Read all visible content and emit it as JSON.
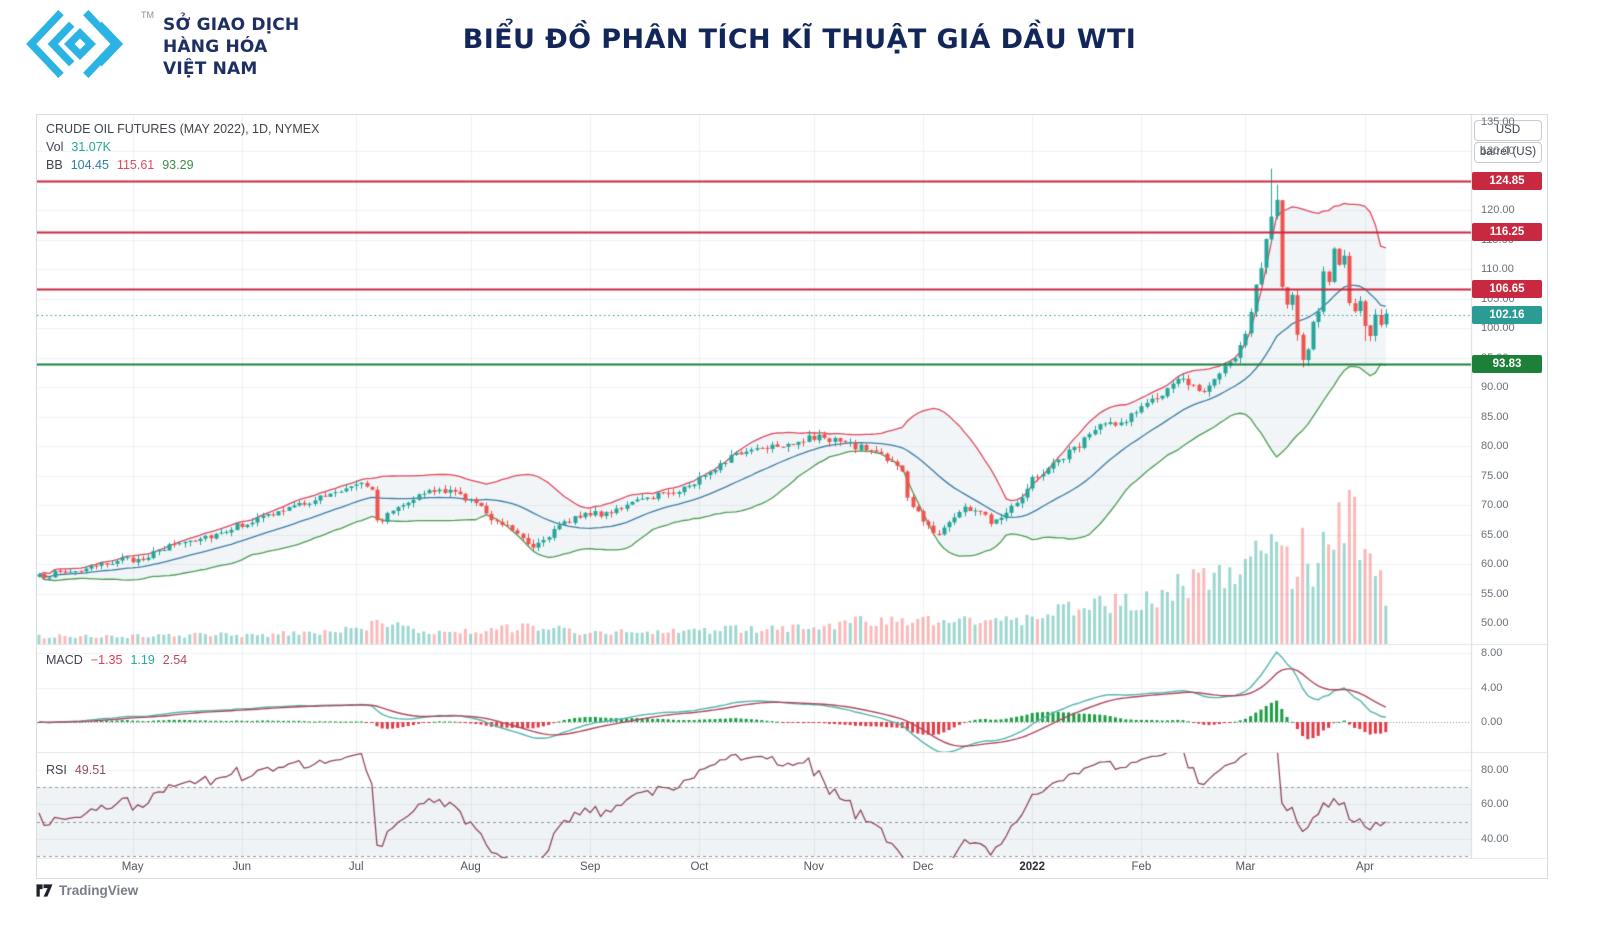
{
  "header": {
    "title": "BIỂU ĐỒ PHÂN TÍCH KĨ THUẬT GIÁ DẦU WTI",
    "logo_tm": "TM",
    "logo_lines": [
      "SỞ GIAO DỊCH",
      "HÀNG HÓA",
      "VIỆT NAM"
    ]
  },
  "chart": {
    "symbol_title": "CRUDE OIL FUTURES (MAY 2022), 1D, NYMEX",
    "vol_label": "Vol",
    "vol_value": "31.07K",
    "bb_label": "BB",
    "bb_basis": "104.45",
    "bb_upper": "115.61",
    "bb_lower": "93.29",
    "macd_label": "MACD",
    "macd_hist": "−1.35",
    "macd_line": "1.19",
    "macd_signal": "2.54",
    "rsi_label": "RSI",
    "rsi_value": "49.51",
    "unit_badges": [
      "USD",
      "barrel (US)"
    ]
  },
  "footer": {
    "attribution": "TradingView"
  },
  "colors": {
    "grid": "#eef1f4",
    "divider": "#e1e4e9",
    "candle_up": "#26a69a",
    "candle_down": "#ef5350",
    "vol_up": "rgba(42,166,154,0.45)",
    "vol_down": "rgba(239,83,80,0.40)",
    "bb_upper": "#df4a5e",
    "bb_lower": "#4d9e52",
    "bb_basis": "#3f7ea6",
    "bb_fill": "rgba(120,160,180,0.10)",
    "macd_line": "#56b6ae",
    "macd_signal": "#b04b5f",
    "hist_up": "#1d9d43",
    "hist_down": "#e13b47",
    "rsi_line": "#90495c",
    "rsi_fill": "rgba(120,160,180,0.12)",
    "rsi_dash": "#9298a0",
    "axis_line": "#d8dbe0"
  },
  "chart_data": {
    "type": "candlestick",
    "title": "CRUDE OIL FUTURES (MAY 2022), 1D, NYMEX",
    "unit": "USD / barrel (US)",
    "indicators": [
      "Volume",
      "BB(20,2)",
      "MACD(12,26,9)",
      "RSI(14)"
    ],
    "legend_values": {
      "vol": "31.07K",
      "bb": [
        104.45,
        115.61,
        93.29
      ],
      "macd": [
        -1.35,
        1.19,
        2.54
      ],
      "rsi": 49.51
    },
    "x_axis": {
      "labels": [
        "May",
        "Jun",
        "Jul",
        "Aug",
        "Sep",
        "Oct",
        "Nov",
        "Dec",
        "2022",
        "Feb",
        "Mar",
        "Apr"
      ]
    },
    "month_start_days": [
      18,
      39,
      61,
      83,
      106,
      127,
      149,
      170,
      191,
      212,
      232,
      255
    ],
    "days_total": 260,
    "price_axis": {
      "min": 50,
      "max": 135,
      "step": 5
    },
    "macd_axis": [
      0,
      4,
      8
    ],
    "rsi_axis": [
      40,
      60,
      80
    ],
    "rsi_bands": [
      70,
      50,
      30
    ],
    "levels": [
      {
        "value": 124.85,
        "label": "124.85",
        "color": "#c82940",
        "style": "solid",
        "role": "resistance-1"
      },
      {
        "value": 116.25,
        "label": "116.25",
        "color": "#c82940",
        "style": "solid",
        "role": "resistance-2"
      },
      {
        "value": 106.65,
        "label": "106.65",
        "color": "#c82940",
        "style": "solid",
        "role": "resistance-3"
      },
      {
        "value": 102.16,
        "label": "102.16",
        "color": "#2a9c94",
        "style": "dotted",
        "role": "last-price"
      },
      {
        "value": 93.83,
        "label": "93.83",
        "color": "#1c8038",
        "style": "solid",
        "role": "support-1"
      }
    ],
    "close_keyframes": [
      [
        0,
        57.8
      ],
      [
        3,
        58.4
      ],
      [
        7,
        58.9
      ],
      [
        11,
        59.4
      ],
      [
        15,
        60.8
      ],
      [
        18,
        60.6
      ],
      [
        22,
        61.7
      ],
      [
        26,
        63.4
      ],
      [
        30,
        64.3
      ],
      [
        34,
        65.1
      ],
      [
        38,
        66.5
      ],
      [
        41,
        67.3
      ],
      [
        45,
        68.5
      ],
      [
        49,
        69.7
      ],
      [
        53,
        71.0
      ],
      [
        57,
        72.0
      ],
      [
        60,
        73.4
      ],
      [
        62,
        74.2
      ],
      [
        64,
        72.9
      ],
      [
        65,
        67.1
      ],
      [
        67,
        68.3
      ],
      [
        70,
        70.5
      ],
      [
        74,
        71.9
      ],
      [
        77,
        72.5
      ],
      [
        80,
        72.0
      ],
      [
        82,
        71.3
      ],
      [
        84,
        70.2
      ],
      [
        87,
        67.9
      ],
      [
        90,
        66.5
      ],
      [
        93,
        64.7
      ],
      [
        95,
        63.0
      ],
      [
        97,
        64.4
      ],
      [
        100,
        66.2
      ],
      [
        103,
        68.0
      ],
      [
        105,
        68.7
      ],
      [
        108,
        68.3
      ],
      [
        111,
        69.5
      ],
      [
        115,
        70.4
      ],
      [
        119,
        71.9
      ],
      [
        123,
        72.5
      ],
      [
        126,
        73.7
      ],
      [
        128,
        75.3
      ],
      [
        132,
        77.7
      ],
      [
        136,
        79.2
      ],
      [
        140,
        80.1
      ],
      [
        144,
        80.5
      ],
      [
        148,
        81.2
      ],
      [
        151,
        81.5
      ],
      [
        155,
        80.4
      ],
      [
        159,
        79.5
      ],
      [
        162,
        78.7
      ],
      [
        164,
        77.1
      ],
      [
        166,
        75.7
      ],
      [
        167,
        71.1
      ],
      [
        169,
        68.5
      ],
      [
        171,
        66.3
      ],
      [
        173,
        64.9
      ],
      [
        175,
        67.4
      ],
      [
        178,
        69.5
      ],
      [
        181,
        68.9
      ],
      [
        183,
        67.1
      ],
      [
        186,
        69.0
      ],
      [
        189,
        71.7
      ],
      [
        191,
        74.4
      ],
      [
        194,
        76.3
      ],
      [
        198,
        78.9
      ],
      [
        202,
        81.8
      ],
      [
        205,
        84.0
      ],
      [
        207,
        83.2
      ],
      [
        210,
        85.3
      ],
      [
        213,
        87.2
      ],
      [
        216,
        88.7
      ],
      [
        218,
        90.0
      ],
      [
        220,
        91.5
      ],
      [
        222,
        90.3
      ],
      [
        224,
        89.7
      ],
      [
        226,
        90.9
      ],
      [
        228,
        93.0
      ],
      [
        230,
        95.2
      ],
      [
        231,
        96.5
      ],
      [
        232,
        99.4
      ],
      [
        233,
        102.5
      ],
      [
        234,
        107.0
      ],
      [
        235,
        110.4
      ],
      [
        236,
        114.9
      ],
      [
        237,
        118.7
      ],
      [
        238,
        121.4
      ],
      [
        239,
        106.9
      ],
      [
        240,
        103.7
      ],
      [
        241,
        105.0
      ],
      [
        242,
        99.3
      ],
      [
        243,
        94.9
      ],
      [
        244,
        96.8
      ],
      [
        245,
        100.7
      ],
      [
        246,
        103.3
      ],
      [
        247,
        109.5
      ],
      [
        248,
        108.4
      ],
      [
        249,
        112.7
      ],
      [
        250,
        110.3
      ],
      [
        251,
        111.5
      ],
      [
        252,
        104.7
      ],
      [
        253,
        102.4
      ],
      [
        254,
        105.3
      ],
      [
        255,
        99.7
      ],
      [
        256,
        98.5
      ],
      [
        257,
        101.9
      ],
      [
        258,
        100.0
      ],
      [
        259,
        102.16
      ]
    ],
    "forced_highs": {
      "237": 127.0,
      "238": 124.3
    },
    "forced_lows": {
      "243": 93.3,
      "255": 97.8
    },
    "volume_keyframes": [
      [
        0,
        0.05
      ],
      [
        27,
        0.06
      ],
      [
        47,
        0.07
      ],
      [
        62,
        0.1
      ],
      [
        65,
        0.14
      ],
      [
        77,
        0.08
      ],
      [
        95,
        0.12
      ],
      [
        107,
        0.08
      ],
      [
        127,
        0.09
      ],
      [
        147,
        0.12
      ],
      [
        167,
        0.18
      ],
      [
        172,
        0.16
      ],
      [
        182,
        0.14
      ],
      [
        191,
        0.18
      ],
      [
        197,
        0.22
      ],
      [
        203,
        0.26
      ],
      [
        209,
        0.28
      ],
      [
        215,
        0.33
      ],
      [
        221,
        0.4
      ],
      [
        228,
        0.45
      ],
      [
        231,
        0.48
      ],
      [
        234,
        0.55
      ],
      [
        237,
        0.6
      ],
      [
        239,
        0.58
      ],
      [
        241,
        0.52
      ],
      [
        243,
        0.62
      ],
      [
        245,
        0.55
      ],
      [
        247,
        0.64
      ],
      [
        249,
        0.72
      ],
      [
        250,
        0.85
      ],
      [
        251,
        0.8
      ],
      [
        252,
        0.92
      ],
      [
        253,
        1.0
      ],
      [
        254,
        0.7
      ],
      [
        255,
        0.64
      ],
      [
        256,
        0.66
      ],
      [
        257,
        0.55
      ],
      [
        258,
        0.5
      ],
      [
        259,
        0.22
      ]
    ]
  }
}
